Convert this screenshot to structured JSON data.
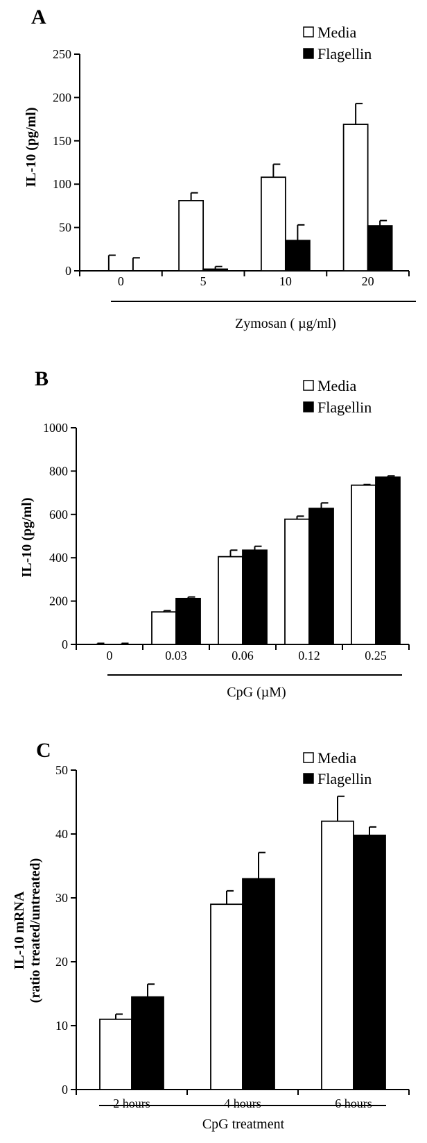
{
  "chart_data": [
    {
      "type": "bar",
      "panel_label": "A",
      "title": "",
      "xlabel": "Zymosan ( µg/ml)",
      "ylabel": "IL-10 (pg/ml)",
      "categories": [
        "0",
        "5",
        "10",
        "20"
      ],
      "ylim": [
        0,
        250
      ],
      "yticks": [
        "0",
        "50",
        "100",
        "150",
        "200",
        "250"
      ],
      "legend_position": "top-right",
      "series": [
        {
          "name": "Media",
          "values": [
            0,
            81,
            108,
            169
          ],
          "errors": [
            18,
            9,
            15,
            24
          ],
          "color": "#ffffff"
        },
        {
          "name": "Flagellin",
          "values": [
            0,
            2,
            35,
            52
          ],
          "errors": [
            15,
            3,
            18,
            6
          ],
          "color": "#000000"
        }
      ]
    },
    {
      "type": "bar",
      "panel_label": "B",
      "title": "",
      "xlabel": "CpG (µM)",
      "ylabel": "IL-10 (pg/ml)",
      "categories": [
        "0",
        "0.03",
        "0.06",
        "0.12",
        "0.25"
      ],
      "ylim": [
        0,
        1000
      ],
      "yticks": [
        "0",
        "200",
        "400",
        "600",
        "800",
        "1000"
      ],
      "legend_position": "top-right",
      "series": [
        {
          "name": "Media",
          "values": [
            0,
            150,
            405,
            578,
            735
          ],
          "errors": [
            5,
            6,
            30,
            14,
            3
          ],
          "color": "#ffffff"
        },
        {
          "name": "Flagellin",
          "values": [
            0,
            212,
            435,
            628,
            772
          ],
          "errors": [
            5,
            7,
            18,
            25,
            6
          ],
          "color": "#000000"
        }
      ]
    },
    {
      "type": "bar",
      "panel_label": "C",
      "title": "",
      "xlabel": "CpG treatment",
      "ylabel": "IL-10 mRNA",
      "ylabel2": "(ratio treated/untreated)",
      "categories": [
        "2 hours",
        "4 hours",
        "6 hours"
      ],
      "ylim": [
        0,
        50
      ],
      "yticks": [
        "0",
        "10",
        "20",
        "30",
        "40",
        "50"
      ],
      "legend_position": "top-right",
      "series": [
        {
          "name": "Media",
          "values": [
            11,
            29,
            42
          ],
          "errors": [
            0.8,
            2.1,
            3.9
          ],
          "color": "#ffffff"
        },
        {
          "name": "Flagellin",
          "values": [
            14.5,
            33,
            39.8
          ],
          "errors": [
            2,
            4.1,
            1.3
          ],
          "color": "#000000"
        }
      ]
    }
  ]
}
